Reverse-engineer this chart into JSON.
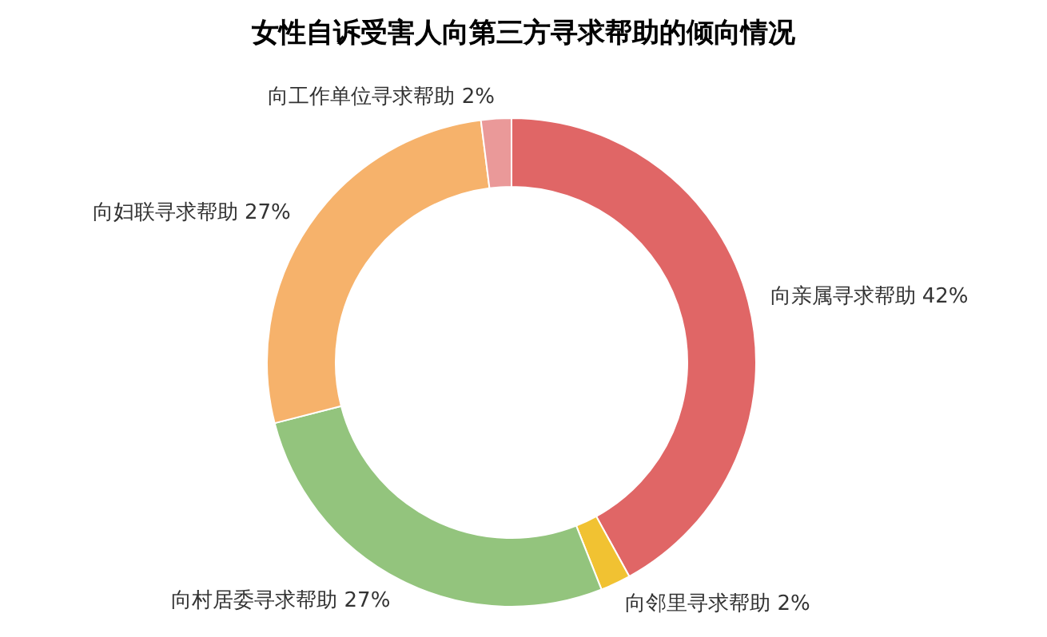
{
  "chart_data": {
    "type": "donut",
    "title": "女性自诉受害人向第三方寻求帮助的倾向情况",
    "categories": [
      "向亲属寻求帮助",
      "向邻里寻求帮助",
      "向村居委寻求帮助",
      "向妇联寻求帮助",
      "向工作单位寻求帮助"
    ],
    "values": [
      42,
      2,
      27,
      27,
      2
    ],
    "value_labels": [
      "42%",
      "2%",
      "27%",
      "27%",
      "2%"
    ],
    "colors": [
      "#e06666",
      "#f1c232",
      "#93c47d",
      "#f6b26b",
      "#ea9999"
    ],
    "legend": false
  }
}
